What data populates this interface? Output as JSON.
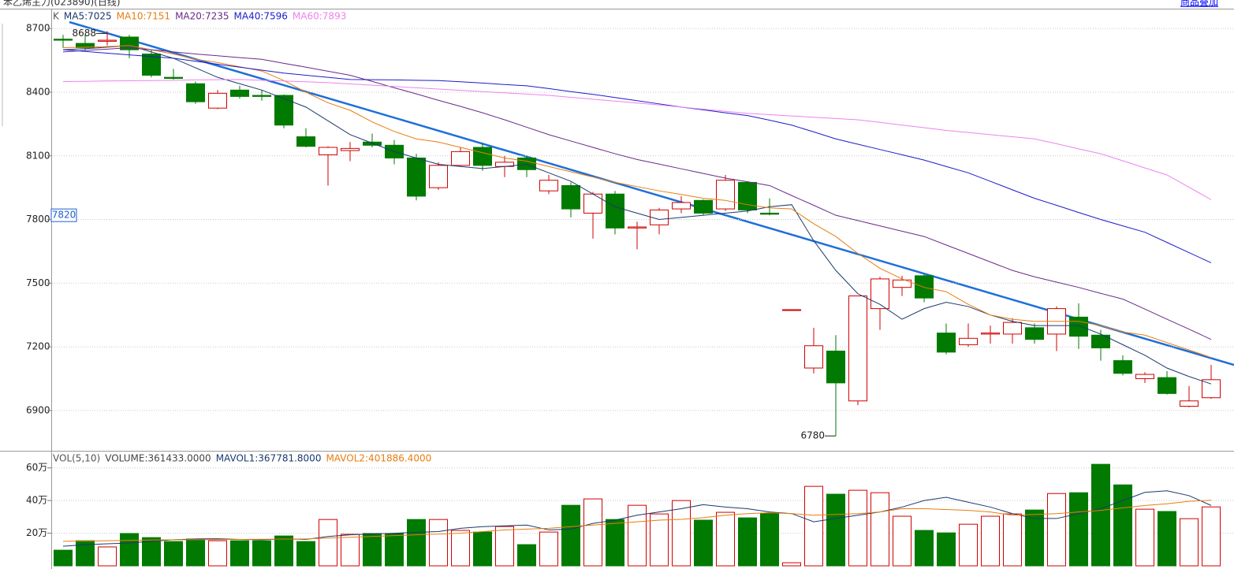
{
  "header": {
    "title": "苯乙烯主力(023890)(日线)",
    "link": "商品叠加"
  },
  "chart_data": [
    {
      "type": "candlestick",
      "legend_title": "K",
      "up_color": "#d00000",
      "down_color": "#007a00",
      "categories": [
        null,
        null,
        null,
        null,
        null,
        null,
        null,
        null,
        null,
        null,
        null,
        null,
        null,
        null,
        null,
        null,
        null,
        null,
        null,
        null,
        null,
        null,
        null,
        null,
        null,
        null,
        null,
        null,
        null,
        null,
        null,
        null,
        null,
        null,
        null,
        null,
        null,
        null,
        null,
        null,
        null,
        null,
        null,
        null,
        null,
        null,
        null,
        null,
        null,
        null,
        null,
        null,
        null
      ],
      "open": [
        8650,
        8630,
        8640,
        8660,
        8580,
        8470,
        8440,
        8325,
        8410,
        8385,
        8385,
        8190,
        8105,
        8125,
        8165,
        8150,
        8090,
        7950,
        8055,
        8140,
        8050,
        8090,
        7935,
        7960,
        7830,
        7920,
        7760,
        7775,
        7850,
        7890,
        7850,
        7975,
        7830,
        7375,
        7100,
        7180,
        6945,
        7380,
        7480,
        7535,
        7265,
        7210,
        7260,
        7260,
        7290,
        7260,
        7340,
        7255,
        7135,
        7050,
        7055,
        6920,
        6960
      ],
      "high": [
        8670,
        8670,
        8688,
        8670,
        8600,
        8510,
        8450,
        8410,
        8430,
        8410,
        8390,
        8230,
        8145,
        8165,
        8205,
        8175,
        8110,
        8070,
        8140,
        8160,
        8100,
        8100,
        8010,
        7975,
        7930,
        7935,
        7790,
        7855,
        7910,
        7895,
        8010,
        7980,
        7900,
        7375,
        7290,
        7255,
        7440,
        7530,
        7535,
        7540,
        7310,
        7310,
        7300,
        7335,
        7310,
        7390,
        7405,
        7280,
        7160,
        7080,
        7085,
        7015,
        7115
      ],
      "low": [
        8610,
        8600,
        8620,
        8560,
        8470,
        8460,
        8345,
        8320,
        8370,
        8360,
        8230,
        8140,
        7960,
        8075,
        8140,
        8060,
        7890,
        7940,
        8050,
        8030,
        8000,
        8000,
        7920,
        7810,
        7710,
        7730,
        7660,
        7730,
        7830,
        7820,
        7840,
        7830,
        7820,
        7375,
        7075,
        6780,
        6925,
        7280,
        7440,
        7410,
        7165,
        7200,
        7215,
        7215,
        7215,
        7180,
        7190,
        7135,
        7065,
        7030,
        6975,
        6915,
        6955
      ],
      "close": [
        8645,
        8610,
        8645,
        8600,
        8480,
        8465,
        8355,
        8395,
        8380,
        8380,
        8245,
        8145,
        8140,
        8135,
        8150,
        8090,
        7910,
        8055,
        8120,
        8055,
        8070,
        8035,
        7985,
        7850,
        7920,
        7760,
        7765,
        7845,
        7880,
        7830,
        7985,
        7845,
        7825,
        7375,
        7205,
        7030,
        7440,
        7520,
        7515,
        7430,
        7175,
        7240,
        7265,
        7315,
        7235,
        7380,
        7250,
        7195,
        7075,
        7070,
        6980,
        6945,
        7045
      ],
      "series": [
        {
          "name": "MA5:7025",
          "color": "#1a3a6e",
          "values": [
            8600,
            8605,
            8612,
            8620,
            8590,
            8560,
            8515,
            8470,
            8440,
            8410,
            8370,
            8330,
            8265,
            8200,
            8160,
            8120,
            8090,
            8060,
            8050,
            8040,
            8050,
            8060,
            8020,
            7980,
            7920,
            7860,
            7830,
            7800,
            7810,
            7820,
            7830,
            7840,
            7860,
            7870,
            7700,
            7560,
            7450,
            7400,
            7330,
            7380,
            7410,
            7390,
            7350,
            7320,
            7300,
            7300,
            7300,
            7260,
            7210,
            7160,
            7100,
            7060,
            7025
          ]
        },
        {
          "name": "MA10:7151",
          "color": "#e87d0f",
          "values": [
            8610,
            8612,
            8615,
            8620,
            8600,
            8580,
            8555,
            8540,
            8520,
            8500,
            8455,
            8400,
            8350,
            8315,
            8260,
            8215,
            8180,
            8165,
            8140,
            8115,
            8090,
            8075,
            8050,
            8025,
            8000,
            7975,
            7955,
            7935,
            7918,
            7900,
            7890,
            7870,
            7855,
            7850,
            7780,
            7720,
            7640,
            7570,
            7520,
            7480,
            7460,
            7400,
            7350,
            7330,
            7320,
            7320,
            7320,
            7300,
            7270,
            7255,
            7220,
            7185,
            7150
          ]
        },
        {
          "name": "MA20:7235",
          "color": "#6a2a8a",
          "values": [
            8590,
            8597,
            8603,
            8610,
            8600,
            8590,
            8580,
            8572,
            8563,
            8555,
            8536,
            8518,
            8499,
            8480,
            8451,
            8421,
            8392,
            8362,
            8333,
            8303,
            8270,
            8235,
            8200,
            8170,
            8140,
            8110,
            8083,
            8061,
            8039,
            8017,
            7995,
            7978,
            7960,
            7913,
            7867,
            7820,
            7795,
            7770,
            7745,
            7720,
            7680,
            7640,
            7600,
            7560,
            7530,
            7505,
            7480,
            7452,
            7425,
            7378,
            7330,
            7283,
            7235
          ]
        },
        {
          "name": "MA40:7596",
          "color": "#1c1ccc",
          "values": [
            8600,
            8592,
            8584,
            8576,
            8568,
            8560,
            8546,
            8532,
            8518,
            8504,
            8490,
            8480,
            8470,
            8460,
            8459,
            8458,
            8456,
            8455,
            8449,
            8443,
            8436,
            8430,
            8417,
            8403,
            8390,
            8375,
            8360,
            8345,
            8330,
            8317,
            8303,
            8290,
            8268,
            8245,
            8213,
            8180,
            8155,
            8130,
            8105,
            8080,
            8050,
            8020,
            7980,
            7940,
            7900,
            7867,
            7833,
            7800,
            7770,
            7740,
            7692,
            7644,
            7596
          ]
        },
        {
          "name": "MA60:7893",
          "color": "#ee82ee",
          "values": [
            8450,
            8451,
            8453,
            8454,
            8455,
            8456,
            8458,
            8459,
            8460,
            8456,
            8453,
            8449,
            8445,
            8439,
            8433,
            8427,
            8421,
            8415,
            8409,
            8403,
            8397,
            8391,
            8385,
            8376,
            8367,
            8358,
            8349,
            8340,
            8330,
            8320,
            8310,
            8300,
            8294,
            8288,
            8282,
            8276,
            8270,
            8258,
            8245,
            8233,
            8220,
            8210,
            8200,
            8190,
            8180,
            8157,
            8133,
            8110,
            8077,
            8043,
            8010,
            7952,
            7893
          ]
        }
      ],
      "ylim": [
        6710,
        8790
      ],
      "yticks": [
        8700,
        8400,
        8100,
        7800,
        7500,
        7200,
        6900
      ],
      "grid": true,
      "max_label": 8688,
      "min_label": 6780,
      "price_marker": 7820
    },
    {
      "type": "bar",
      "legend_title": "VOL(5,10)",
      "series": [
        {
          "name": "VOLUME:361433.0000",
          "style": "bar",
          "values": [
            9.6,
            15.4,
            11.6,
            19.8,
            17.3,
            14.9,
            16.4,
            15.4,
            15.4,
            15.4,
            18.3,
            14.9,
            28.4,
            19.3,
            19.8,
            19.8,
            28.4,
            28.4,
            21.7,
            20.7,
            24.1,
            13.0,
            20.7,
            37.1,
            41.0,
            28.4,
            37.1,
            31.8,
            40.0,
            28.0,
            32.8,
            29.4,
            32.3,
            1.9,
            48.7,
            43.9,
            46.3,
            44.8,
            30.4,
            21.7,
            20.2,
            25.5,
            30.4,
            31.8,
            34.2,
            44.3,
            44.8,
            62.2,
            49.6,
            34.7,
            33.3,
            28.9,
            36.1
          ]
        },
        {
          "name": "MAVOL1:367781.8000",
          "style": "line",
          "color": "#1a3a6e",
          "values": [
            12,
            13,
            13.5,
            14,
            15,
            16,
            16.5,
            16.6,
            16.2,
            16,
            16.5,
            16.2,
            18,
            19,
            19.5,
            20,
            20.5,
            21,
            23,
            24,
            24.5,
            25,
            22,
            22.5,
            26,
            28,
            31,
            33,
            35,
            37.5,
            36,
            35,
            33,
            32,
            27,
            29,
            31,
            33,
            36,
            40,
            42,
            39,
            36,
            32,
            29,
            29,
            32,
            35,
            40,
            45,
            46,
            43,
            37
          ]
        },
        {
          "name": "MAVOL2:401886.4000",
          "style": "line",
          "color": "#e87d0f",
          "values": [
            15,
            15.2,
            15.4,
            15.6,
            15.8,
            16,
            16,
            16.1,
            16.2,
            16.3,
            16.4,
            16.5,
            17,
            17.5,
            18,
            18.5,
            19,
            19.5,
            20,
            21,
            22,
            22.5,
            23,
            24,
            25,
            26,
            27,
            28,
            28.5,
            29.5,
            31,
            32,
            32.5,
            32,
            31,
            31.5,
            32,
            33,
            35,
            35,
            34.5,
            34,
            33,
            31,
            31.5,
            32,
            33,
            34,
            35.5,
            37,
            38,
            39.5,
            40.2
          ]
        }
      ],
      "ylim": [
        0,
        70
      ],
      "yticks": [
        {
          "value": 60,
          "label": "60万"
        },
        {
          "value": 40,
          "label": "40万"
        },
        {
          "value": 20,
          "label": "20万"
        }
      ],
      "grid": true
    }
  ]
}
